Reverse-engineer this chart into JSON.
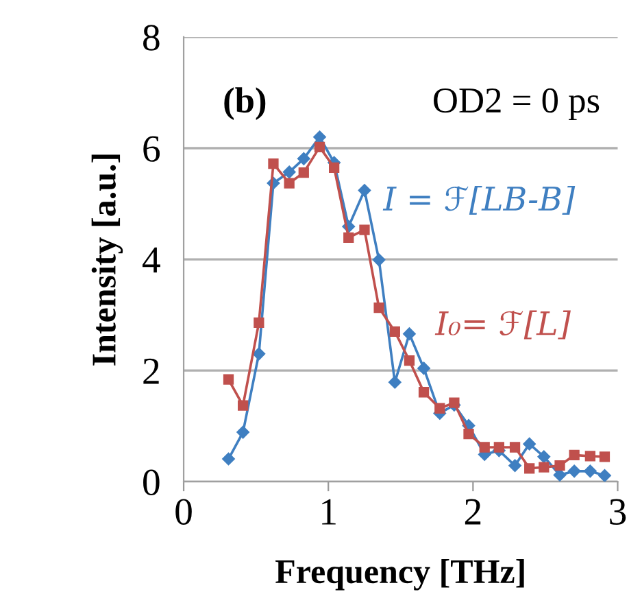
{
  "chart_data": {
    "type": "line",
    "xlabel": "Frequency [THz]",
    "ylabel": "Intensity [a.u.]",
    "annotations": [
      "(b)",
      "OD2 = 0 ps"
    ],
    "xlim": [
      0,
      3
    ],
    "xticks": [
      0,
      1,
      2,
      3
    ],
    "ylim": [
      0,
      8
    ],
    "yticks": [
      0,
      2,
      4,
      6,
      8
    ],
    "grid": "y",
    "legend": false,
    "series": [
      {
        "name": "I = ℱ[LB-B]",
        "color": "#3f7fc1",
        "marker": "diamond",
        "x": [
          0.31,
          0.41,
          0.52,
          0.62,
          0.73,
          0.83,
          0.94,
          1.04,
          1.14,
          1.25,
          1.35,
          1.46,
          1.56,
          1.66,
          1.77,
          1.87,
          1.97,
          2.08,
          2.18,
          2.29,
          2.39,
          2.49,
          2.6,
          2.7,
          2.81,
          2.91
        ],
        "values": [
          0.41,
          0.89,
          2.3,
          5.37,
          5.57,
          5.81,
          6.2,
          5.74,
          4.59,
          5.24,
          3.99,
          1.79,
          2.66,
          2.04,
          1.23,
          1.38,
          1.01,
          0.49,
          0.56,
          0.29,
          0.68,
          0.45,
          0.12,
          0.19,
          0.19,
          0.11
        ]
      },
      {
        "name": "I₀= ℱ[L]",
        "color": "#c0504d",
        "marker": "square",
        "x": [
          0.31,
          0.41,
          0.52,
          0.62,
          0.73,
          0.83,
          0.94,
          1.04,
          1.14,
          1.25,
          1.35,
          1.46,
          1.56,
          1.66,
          1.77,
          1.87,
          1.97,
          2.08,
          2.18,
          2.29,
          2.39,
          2.49,
          2.6,
          2.7,
          2.81,
          2.91
        ],
        "values": [
          1.84,
          1.37,
          2.86,
          5.72,
          5.37,
          5.56,
          6.02,
          5.65,
          4.39,
          4.53,
          3.13,
          2.7,
          2.18,
          1.61,
          1.32,
          1.42,
          0.86,
          0.62,
          0.62,
          0.62,
          0.24,
          0.26,
          0.29,
          0.48,
          0.46,
          0.45
        ]
      }
    ]
  }
}
